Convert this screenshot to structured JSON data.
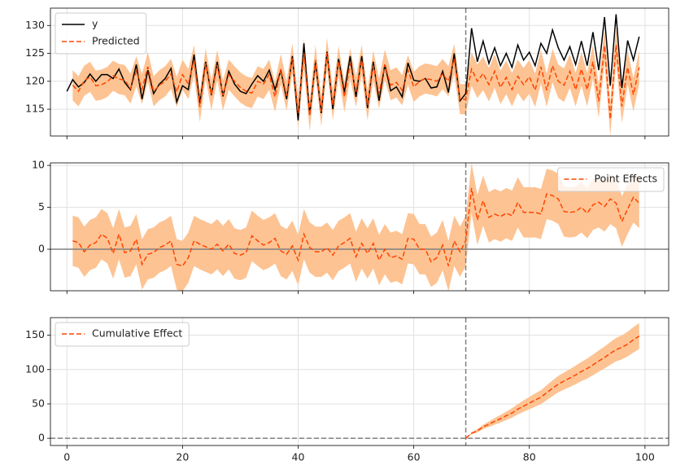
{
  "chart_data": {
    "type": "line",
    "x": [
      0,
      1,
      2,
      3,
      4,
      5,
      6,
      7,
      8,
      9,
      10,
      11,
      12,
      13,
      14,
      15,
      16,
      17,
      18,
      19,
      20,
      21,
      22,
      23,
      24,
      25,
      26,
      27,
      28,
      29,
      30,
      31,
      32,
      33,
      34,
      35,
      36,
      37,
      38,
      39,
      40,
      41,
      42,
      43,
      44,
      45,
      46,
      47,
      48,
      49,
      50,
      51,
      52,
      53,
      54,
      55,
      56,
      57,
      58,
      59,
      60,
      61,
      62,
      63,
      64,
      65,
      66,
      67,
      68,
      69,
      70,
      71,
      72,
      73,
      74,
      75,
      76,
      77,
      78,
      79,
      80,
      81,
      82,
      83,
      84,
      85,
      86,
      87,
      88,
      89,
      90,
      91,
      92,
      93,
      94,
      95,
      96,
      97,
      98,
      99
    ],
    "xlim": [
      -2.85,
      104.1
    ],
    "xticks": [
      0,
      20,
      40,
      60,
      80,
      100
    ],
    "grid": true,
    "vline": {
      "value": 69,
      "color": "#808080",
      "style": "dashed"
    },
    "panels": [
      {
        "ylim": [
          110.2,
          133.1
        ],
        "yticks": [
          115,
          120,
          125,
          130
        ],
        "legend": "upper left",
        "series": [
          {
            "name": "y",
            "color": "#000000",
            "style": "solid",
            "values": [
              118.2,
              120.3,
              119.0,
              119.8,
              121.3,
              120.0,
              121.2,
              121.2,
              120.5,
              122.2,
              119.8,
              118.5,
              123.0,
              116.8,
              122.0,
              117.8,
              119.5,
              120.5,
              122.3,
              116.3,
              119.2,
              118.5,
              124.8,
              116.0,
              123.5,
              117.5,
              123.5,
              117.3,
              121.8,
              119.5,
              118.2,
              117.8,
              119.5,
              121.0,
              120.0,
              122.0,
              118.5,
              122.0,
              116.8,
              124.5,
              113.0,
              126.8,
              114.0,
              123.5,
              114.3,
              125.3,
              115.0,
              124.0,
              118.0,
              124.5,
              117.2,
              124.5,
              115.2,
              123.5,
              116.5,
              123.0,
              118.3,
              119.0,
              117.2,
              123.3,
              120.2,
              120.0,
              120.5,
              118.8,
              119.0,
              121.8,
              118.0,
              125.0,
              116.5,
              117.8,
              129.5,
              123.5,
              127.2,
              123.2,
              126.0,
              122.8,
              125.0,
              122.5,
              126.5,
              123.8,
              125.2,
              122.8,
              126.8,
              125.0,
              129.2,
              126.0,
              123.8,
              126.2,
              123.0,
              127.2,
              122.8,
              128.8,
              122.0,
              131.5,
              119.2,
              132.0,
              118.8,
              127.3,
              123.8,
              128.0
            ]
          },
          {
            "name": "Predicted",
            "color": "#ff4500",
            "style": "dashed",
            "band_color": "#fdc393",
            "values": [
              null,
              119.3,
              118.2,
              120.1,
              120.8,
              119.2,
              119.4,
              119.9,
              121.0,
              120.4,
              120.2,
              118.7,
              121.8,
              118.6,
              122.6,
              118.2,
              119.3,
              120.0,
              121.3,
              118.1,
              121.2,
              119.5,
              123.8,
              115.4,
              123.2,
              117.5,
              122.9,
              117.5,
              121.2,
              120.0,
              118.9,
              118.2,
              117.9,
              120.0,
              119.5,
              121.2,
              117.2,
              122.2,
              117.4,
              124.1,
              114.3,
              125.0,
              113.8,
              123.8,
              114.6,
              125.1,
              115.7,
              123.6,
              117.2,
              123.2,
              118.1,
              123.8,
              115.7,
              122.8,
              117.8,
              123.0,
              119.3,
              119.8,
              118.4,
              122.0,
              119.0,
              120.0,
              120.5,
              120.3,
              120.0,
              121.3,
              120.0,
              124.0,
              116.8,
              116.8,
              122.2,
              120.0,
              121.4,
              119.4,
              121.8,
              118.9,
              120.7,
              118.5,
              120.9,
              119.4,
              120.8,
              118.4,
              122.6,
              118.4,
              122.8,
              120.0,
              119.3,
              121.8,
              118.5,
              122.2,
              118.5,
              123.5,
              116.4,
              126.4,
              113.2,
              126.5,
              115.5,
              122.5,
              117.6,
              122.5
            ],
            "errors": [
              null,
              2.7,
              2.7,
              2.7,
              2.7,
              2.7,
              2.7,
              2.7,
              2.7,
              2.7,
              2.7,
              2.7,
              2.7,
              2.7,
              2.7,
              2.7,
              2.7,
              2.7,
              2.7,
              2.7,
              2.7,
              2.7,
              2.7,
              2.7,
              2.7,
              2.7,
              2.7,
              2.7,
              2.7,
              2.7,
              2.7,
              2.7,
              2.7,
              2.7,
              2.7,
              2.7,
              2.7,
              2.7,
              2.7,
              2.7,
              2.7,
              2.7,
              2.7,
              2.7,
              2.7,
              2.7,
              2.7,
              2.7,
              2.7,
              2.7,
              2.7,
              2.7,
              2.7,
              2.7,
              2.7,
              2.7,
              2.7,
              2.7,
              2.7,
              2.7,
              2.7,
              2.7,
              2.7,
              2.7,
              2.7,
              2.7,
              2.7,
              2.7,
              2.7,
              2.7,
              3,
              3,
              3,
              3,
              3,
              3,
              3,
              3,
              3,
              3,
              3,
              3,
              3,
              3,
              3,
              3,
              3,
              3,
              3,
              3,
              3,
              3,
              3,
              3,
              3,
              3,
              3,
              3,
              3,
              3
            ]
          }
        ]
      },
      {
        "ylim": [
          -4.95,
          10.3
        ],
        "yticks": [
          0,
          5,
          10
        ],
        "legend": "upper right",
        "hline": {
          "value": 0,
          "color": "#808080",
          "style": "solid"
        },
        "series": [
          {
            "name": "Point Effects",
            "color": "#ff4500",
            "style": "dashed",
            "band_color": "#fdc393",
            "values": [
              null,
              1.0,
              0.8,
              -0.3,
              0.5,
              0.8,
              1.8,
              1.3,
              -0.5,
              1.8,
              -0.4,
              -0.2,
              1.2,
              -1.8,
              -0.6,
              -0.4,
              0.2,
              0.5,
              1.0,
              -1.8,
              -2.0,
              -1.0,
              1.0,
              0.6,
              0.3,
              0.0,
              0.6,
              -0.2,
              0.6,
              -0.5,
              -0.7,
              -0.4,
              1.6,
              1.0,
              0.5,
              0.8,
              1.3,
              -0.2,
              -0.6,
              0.4,
              -1.3,
              1.8,
              0.2,
              -0.3,
              -0.3,
              0.2,
              -0.7,
              0.4,
              0.8,
              1.3,
              -0.9,
              0.7,
              -0.5,
              0.7,
              -1.3,
              0.0,
              -1.0,
              -0.8,
              -1.2,
              1.3,
              1.2,
              0.0,
              0.0,
              -1.5,
              -1.0,
              0.5,
              -2.0,
              1.0,
              -0.3,
              1.0,
              7.3,
              3.5,
              5.8,
              3.8,
              4.2,
              3.9,
              4.3,
              4.0,
              5.6,
              4.4,
              4.4,
              4.4,
              4.2,
              6.6,
              6.4,
              6.0,
              4.5,
              4.4,
              4.5,
              5.0,
              4.3,
              5.3,
              5.6,
              5.1,
              6.0,
              5.5,
              3.3,
              4.8,
              6.2,
              5.5
            ],
            "errors": [
              null,
              3,
              3,
              3,
              3,
              3,
              3,
              3,
              3,
              3,
              3,
              3,
              3,
              3,
              3,
              3,
              3,
              3,
              3,
              3,
              3,
              3,
              3,
              3,
              3,
              3,
              3,
              3,
              3,
              3,
              3,
              3,
              3,
              3,
              3,
              3,
              3,
              3,
              3,
              3,
              3,
              3,
              3,
              3,
              3,
              3,
              3,
              3,
              3,
              3,
              3,
              3,
              3,
              3,
              3,
              3,
              3,
              3,
              3,
              3,
              3,
              3,
              3,
              3,
              3,
              3,
              3,
              3,
              3,
              3,
              3,
              3,
              3,
              3,
              3,
              3,
              3,
              3,
              3,
              3,
              3,
              3,
              3,
              3,
              3,
              3,
              3,
              3,
              3,
              3,
              3,
              3,
              3,
              3,
              3,
              3,
              3,
              3,
              3,
              3
            ]
          }
        ]
      },
      {
        "ylim": [
          -10.5,
          175.6
        ],
        "yticks": [
          0,
          50,
          100,
          150
        ],
        "legend": "upper left",
        "hline": {
          "value": 0,
          "color": "#808080",
          "style": "dashed"
        },
        "series": [
          {
            "name": "Cumulative Effect",
            "color": "#ff4500",
            "style": "dashed",
            "band_color": "#fdc393",
            "values": [
              null,
              null,
              null,
              null,
              null,
              null,
              null,
              null,
              null,
              null,
              null,
              null,
              null,
              null,
              null,
              null,
              null,
              null,
              null,
              null,
              null,
              null,
              null,
              null,
              null,
              null,
              null,
              null,
              null,
              null,
              null,
              null,
              null,
              null,
              null,
              null,
              null,
              null,
              null,
              null,
              null,
              null,
              null,
              null,
              null,
              null,
              null,
              null,
              null,
              null,
              null,
              null,
              null,
              null,
              null,
              null,
              null,
              null,
              null,
              null,
              null,
              null,
              null,
              null,
              null,
              null,
              null,
              null,
              null,
              0,
              7.3,
              10.8,
              16.6,
              20.4,
              24.6,
              28.5,
              32.8,
              36.8,
              42.4,
              46.8,
              51.2,
              55.6,
              59.8,
              66.4,
              72.8,
              78.8,
              83.3,
              87.7,
              92.2,
              97.2,
              101.5,
              106.8,
              112.4,
              117.5,
              123.5,
              129.0,
              132.3,
              137.1,
              143.3,
              148.8
            ],
            "errors": [
              null,
              null,
              null,
              null,
              null,
              null,
              null,
              null,
              null,
              null,
              null,
              null,
              null,
              null,
              null,
              null,
              null,
              null,
              null,
              null,
              null,
              null,
              null,
              null,
              null,
              null,
              null,
              null,
              null,
              null,
              null,
              null,
              null,
              null,
              null,
              null,
              null,
              null,
              null,
              null,
              null,
              null,
              null,
              null,
              null,
              null,
              null,
              null,
              null,
              null,
              null,
              null,
              null,
              null,
              null,
              null,
              null,
              null,
              null,
              null,
              null,
              null,
              null,
              null,
              null,
              null,
              null,
              null,
              null,
              0,
              1.5,
              2.5,
              3.2,
              4,
              4.8,
              5.5,
              6.2,
              6.9,
              7.6,
              8.3,
              9,
              9.6,
              10.2,
              10.8,
              11.4,
              12,
              12.5,
              13,
              13.5,
              14,
              14.5,
              15,
              15.5,
              16,
              16.5,
              17,
              17.5,
              18,
              18.5,
              19
            ]
          }
        ]
      }
    ]
  }
}
